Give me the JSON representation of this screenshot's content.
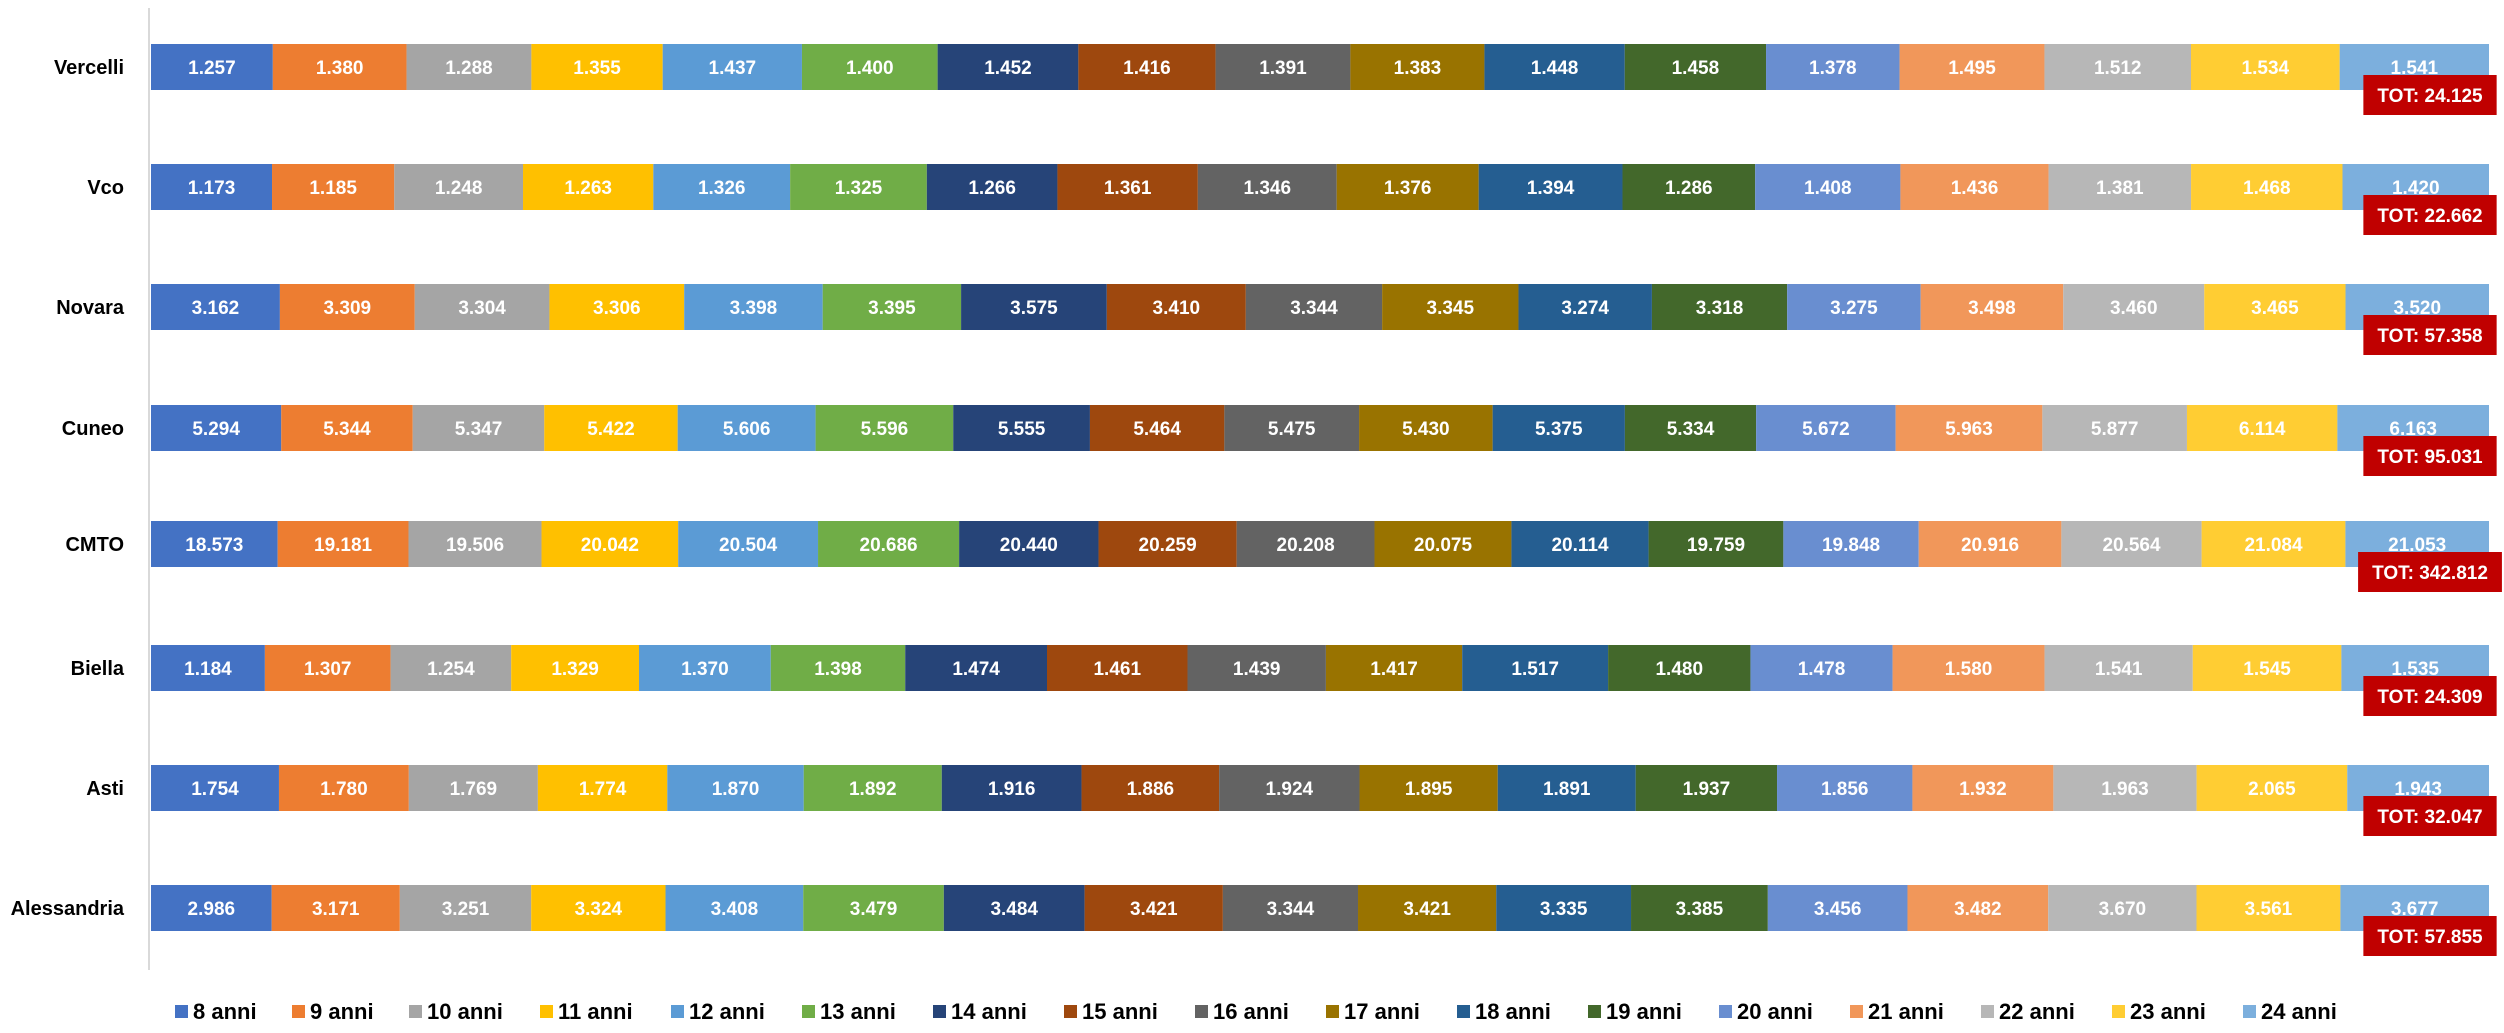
{
  "chart_data": {
    "type": "bar",
    "orientation": "horizontal",
    "stacked": true,
    "categories": [
      "Vercelli",
      "Vco",
      "Novara",
      "Cuneo",
      "CMTO",
      "Biella",
      "Asti",
      "Alessandria"
    ],
    "series": [
      {
        "name": "8 anni",
        "color": "#4472C4",
        "values": [
          1257,
          1173,
          3162,
          5294,
          18573,
          1184,
          1754,
          2986
        ],
        "labels": [
          "1.257",
          "1.173",
          "3.162",
          "5.294",
          "18.573",
          "1.184",
          "1.754",
          "2.986"
        ]
      },
      {
        "name": "9 anni",
        "color": "#ED7D31",
        "values": [
          1380,
          1185,
          3309,
          5344,
          19181,
          1307,
          1780,
          3171
        ],
        "labels": [
          "1.380",
          "1.185",
          "3.309",
          "5.344",
          "19.181",
          "1.307",
          "1.780",
          "3.171"
        ]
      },
      {
        "name": "10 anni",
        "color": "#A5A5A5",
        "values": [
          1288,
          1248,
          3304,
          5347,
          19506,
          1254,
          1769,
          3251
        ],
        "labels": [
          "1.288",
          "1.248",
          "3.304",
          "5.347",
          "19.506",
          "1.254",
          "1.769",
          "3.251"
        ]
      },
      {
        "name": "11 anni",
        "color": "#FFC000",
        "values": [
          1355,
          1263,
          3306,
          5422,
          20042,
          1329,
          1774,
          3324
        ],
        "labels": [
          "1.355",
          "1.263",
          "3.306",
          "5.422",
          "20.042",
          "1.329",
          "1.774",
          "3.324"
        ]
      },
      {
        "name": "12 anni",
        "color": "#5B9BD5",
        "values": [
          1437,
          1326,
          3398,
          5606,
          20504,
          1370,
          1870,
          3408
        ],
        "labels": [
          "1.437",
          "1.326",
          "3.398",
          "5.606",
          "20.504",
          "1.370",
          "1.870",
          "3.408"
        ]
      },
      {
        "name": "13 anni",
        "color": "#70AD47",
        "values": [
          1400,
          1325,
          3395,
          5596,
          20686,
          1398,
          1892,
          3479
        ],
        "labels": [
          "1.400",
          "1.325",
          "3.395",
          "5.596",
          "20.686",
          "1.398",
          "1.892",
          "3.479"
        ]
      },
      {
        "name": "14 anni",
        "color": "#264478",
        "values": [
          1452,
          1266,
          3575,
          5555,
          20440,
          1474,
          1916,
          3484
        ],
        "labels": [
          "1.452",
          "1.266",
          "3.575",
          "5.555",
          "20.440",
          "1.474",
          "1.916",
          "3.484"
        ]
      },
      {
        "name": "15 anni",
        "color": "#9E480E",
        "values": [
          1416,
          1361,
          3410,
          5464,
          20259,
          1461,
          1886,
          3421
        ],
        "labels": [
          "1.416",
          "1.361",
          "3.410",
          "5.464",
          "20.259",
          "1.461",
          "1.886",
          "3.421"
        ]
      },
      {
        "name": "16 anni",
        "color": "#636363",
        "values": [
          1391,
          1346,
          3344,
          5475,
          20208,
          1439,
          1924,
          3344
        ],
        "labels": [
          "1.391",
          "1.346",
          "3.344",
          "5.475",
          "20.208",
          "1.439",
          "1.924",
          "3.344"
        ]
      },
      {
        "name": "17 anni",
        "color": "#997300",
        "values": [
          1383,
          1376,
          3345,
          5430,
          20075,
          1417,
          1895,
          3421
        ],
        "labels": [
          "1.383",
          "1.376",
          "3.345",
          "5.430",
          "20.075",
          "1.417",
          "1.895",
          "3.421"
        ]
      },
      {
        "name": "18 anni",
        "color": "#255E91",
        "values": [
          1448,
          1394,
          3274,
          5375,
          20114,
          1517,
          1891,
          3335
        ],
        "labels": [
          "1.448",
          "1.394",
          "3.274",
          "5.375",
          "20.114",
          "1.517",
          "1.891",
          "3.335"
        ]
      },
      {
        "name": "19 anni",
        "color": "#43682B",
        "values": [
          1458,
          1286,
          3318,
          5334,
          19759,
          1480,
          1937,
          3385
        ],
        "labels": [
          "1.458",
          "1.286",
          "3.318",
          "5.334",
          "19.759",
          "1.480",
          "1.937",
          "3.385"
        ]
      },
      {
        "name": "20 anni",
        "color": "#698ED0",
        "values": [
          1378,
          1408,
          3275,
          5672,
          19848,
          1478,
          1856,
          3456
        ],
        "labels": [
          "1.378",
          "1.408",
          "3.275",
          "5.672",
          "19.848",
          "1.478",
          "1.856",
          "3.456"
        ]
      },
      {
        "name": "21 anni",
        "color": "#F1975A",
        "values": [
          1495,
          1436,
          3498,
          5963,
          20916,
          1580,
          1932,
          3482
        ],
        "labels": [
          "1.495",
          "1.436",
          "3.498",
          "5.963",
          "20.916",
          "1.580",
          "1.932",
          "3.482"
        ]
      },
      {
        "name": "22 anni",
        "color": "#B7B7B7",
        "values": [
          1512,
          1381,
          3460,
          5877,
          20564,
          1541,
          1963,
          3670
        ],
        "labels": [
          "1.512",
          "1.381",
          "3.460",
          "5.877",
          "20.564",
          "1.541",
          "1.963",
          "3.670"
        ]
      },
      {
        "name": "23 anni",
        "color": "#FFCD33",
        "values": [
          1534,
          1468,
          3465,
          6114,
          21084,
          1545,
          2065,
          3561
        ],
        "labels": [
          "1.534",
          "1.468",
          "3.465",
          "6.114",
          "21.084",
          "1.545",
          "2.065",
          "3.561"
        ]
      },
      {
        "name": "24 anni",
        "color": "#7CAFDD",
        "values": [
          1541,
          1420,
          3520,
          6163,
          21053,
          1535,
          1943,
          3677
        ],
        "labels": [
          "1.541",
          "1.420",
          "3.520",
          "6.163",
          "21.053",
          "1.535",
          "1.943",
          "3.677"
        ]
      }
    ],
    "totals": [
      "TOT: 24.125",
      "TOT: 22.662",
      "TOT: 57.358",
      "TOT: 95.031",
      "TOT: 342.812",
      "TOT: 24.309",
      "TOT: 32.047",
      "TOT: 57.855"
    ],
    "total_badge_color": "#C00000",
    "grid": false,
    "legend_position": "bottom",
    "normalized_100_percent": true
  }
}
